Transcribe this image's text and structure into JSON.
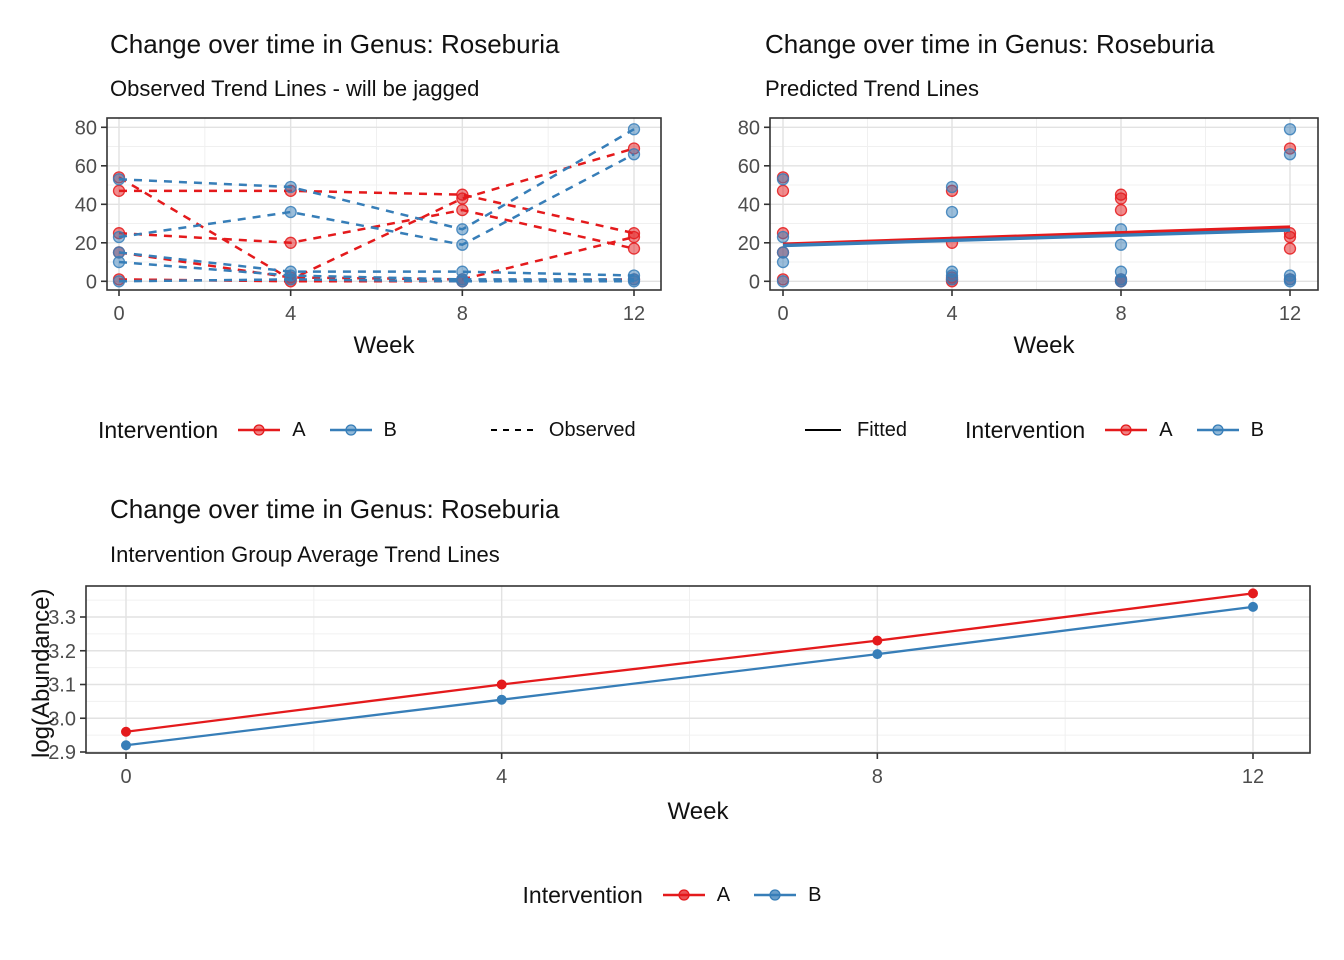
{
  "colors": {
    "intervention_a": "#E41A1C",
    "intervention_b": "#377EB8",
    "key_black": "#000000",
    "grid_major": "#E2E2E2",
    "grid_minor": "#F0F0F0",
    "axis_text": "#4D4D4D",
    "panel_border": "#333333"
  },
  "legends": {
    "observed_panel": {
      "title": "Intervention",
      "a_label": "A",
      "b_label": "B",
      "linetype_label": "Observed"
    },
    "predicted_panel": {
      "fitted_label": "Fitted",
      "title": "Intervention",
      "a_label": "A",
      "b_label": "B"
    },
    "average_panel": {
      "title": "Intervention",
      "a_label": "A",
      "b_label": "B"
    }
  },
  "chart_data": [
    {
      "type": "line",
      "title": "Change over time in Genus: Roseburia",
      "subtitle": "Observed Trend Lines - will be jagged",
      "xlabel": "Week",
      "ylabel": "",
      "x": [
        0,
        4,
        8,
        12
      ],
      "xticks": [
        0,
        4,
        8,
        12
      ],
      "yticks": [
        0,
        20,
        40,
        60,
        80
      ],
      "ylim": [
        -4.5,
        84.5
      ],
      "line_style": "dashed",
      "legend_position": "bottom",
      "grid": true,
      "groups": [
        {
          "name": "A",
          "color_key": "intervention_a",
          "subjects": [
            [
              54,
              1,
              43,
              69
            ],
            [
              47,
              47,
              45,
              25
            ],
            [
              25,
              20,
              37,
              17
            ],
            [
              15,
              2,
              1,
              23
            ],
            [
              1,
              0,
              0,
              1
            ]
          ]
        },
        {
          "name": "B",
          "color_key": "intervention_b",
          "subjects": [
            [
              53,
              49,
              27,
              79
            ],
            [
              23,
              36,
              19,
              66
            ],
            [
              15,
              5,
              5,
              3
            ],
            [
              10,
              3,
              1,
              1
            ],
            [
              0,
              1,
              0,
              0
            ]
          ]
        }
      ]
    },
    {
      "type": "scatter",
      "title": "Change over time in Genus: Roseburia",
      "subtitle": "Predicted Trend Lines",
      "xlabel": "Week",
      "ylabel": "",
      "x": [
        0,
        4,
        8,
        12
      ],
      "xticks": [
        0,
        4,
        8,
        12
      ],
      "yticks": [
        0,
        20,
        40,
        60,
        80
      ],
      "ylim": [
        -4.5,
        84.5
      ],
      "legend_position": "bottom",
      "grid": true,
      "groups": [
        {
          "name": "A",
          "color_key": "intervention_a",
          "subjects": [
            [
              54,
              1,
              43,
              69
            ],
            [
              47,
              47,
              45,
              25
            ],
            [
              25,
              20,
              37,
              17
            ],
            [
              15,
              2,
              1,
              23
            ],
            [
              1,
              0,
              0,
              1
            ]
          ]
        },
        {
          "name": "B",
          "color_key": "intervention_b",
          "subjects": [
            [
              53,
              49,
              27,
              79
            ],
            [
              23,
              36,
              19,
              66
            ],
            [
              15,
              5,
              5,
              3
            ],
            [
              10,
              3,
              1,
              1
            ],
            [
              0,
              1,
              0,
              0
            ]
          ]
        }
      ],
      "fitted": [
        {
          "name": "A",
          "color_key": "intervention_a",
          "x": [
            0,
            12
          ],
          "values": [
            19.3,
            28.2
          ]
        },
        {
          "name": "B",
          "color_key": "intervention_b",
          "x": [
            0,
            12
          ],
          "values": [
            18.6,
            26.6
          ]
        }
      ]
    },
    {
      "type": "line",
      "title": "Change over time in Genus: Roseburia",
      "subtitle": "Intervention Group Average Trend Lines",
      "xlabel": "Week",
      "ylabel": "log(Abundance)",
      "x": [
        0,
        4,
        8,
        12
      ],
      "xticks": [
        0,
        4,
        8,
        12
      ],
      "yticks": [
        2.9,
        3.0,
        3.1,
        3.2,
        3.3
      ],
      "ylim": [
        2.897,
        3.392
      ],
      "line_style": "solid",
      "legend_position": "bottom",
      "grid": true,
      "series": [
        {
          "name": "A",
          "color_key": "intervention_a",
          "values": [
            2.96,
            3.1,
            3.23,
            3.37
          ]
        },
        {
          "name": "B",
          "color_key": "intervention_b",
          "values": [
            2.92,
            3.055,
            3.19,
            3.33
          ]
        }
      ]
    }
  ]
}
